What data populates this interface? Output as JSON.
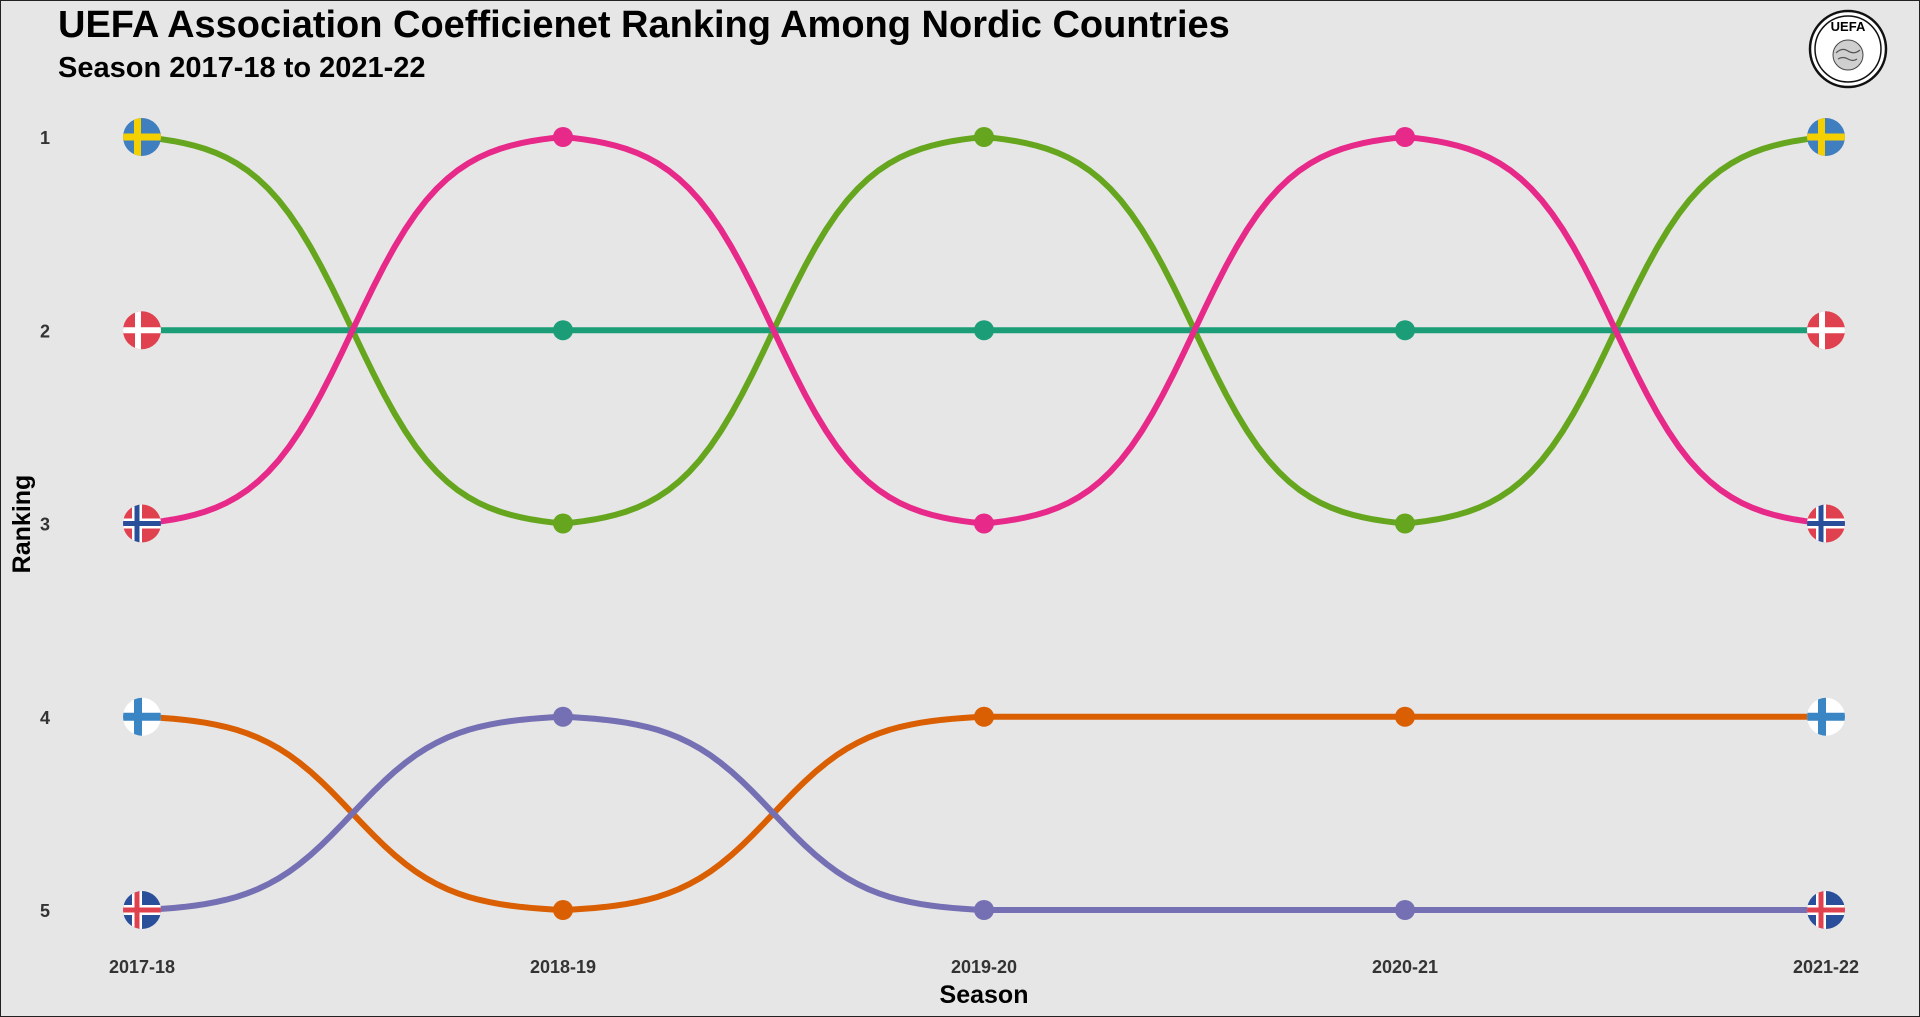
{
  "chart_data": {
    "type": "line",
    "title": "UEFA Association Coefficienet Ranking Among Nordic Countries",
    "subtitle": "Season 2017-18 to 2021-22",
    "xlabel": "Season",
    "ylabel": "Ranking",
    "categories": [
      "2017-18",
      "2018-19",
      "2019-20",
      "2020-21",
      "2021-22"
    ],
    "y_ticks": [
      1,
      2,
      3,
      4,
      5
    ],
    "ylim": [
      1,
      5
    ],
    "y_reversed": true,
    "grid": false,
    "legend": "none",
    "series": [
      {
        "flag": "sweden-flag-icon",
        "color": "#66a61e",
        "values": [
          1,
          3,
          1,
          3,
          1
        ]
      },
      {
        "flag": "denmark-flag-icon",
        "color": "#1b9e77",
        "values": [
          2,
          2,
          2,
          2,
          2
        ]
      },
      {
        "flag": "norway-flag-icon",
        "color": "#e7298a",
        "values": [
          3,
          1,
          3,
          1,
          3
        ]
      },
      {
        "flag": "finland-flag-icon",
        "color": "#d95f02",
        "values": [
          4,
          5,
          4,
          4,
          4
        ]
      },
      {
        "flag": "iceland-flag-icon",
        "color": "#7570b3",
        "values": [
          5,
          4,
          5,
          5,
          5
        ]
      }
    ]
  },
  "logo": {
    "text": "UEFA",
    "icon": "uefa-logo-icon"
  }
}
